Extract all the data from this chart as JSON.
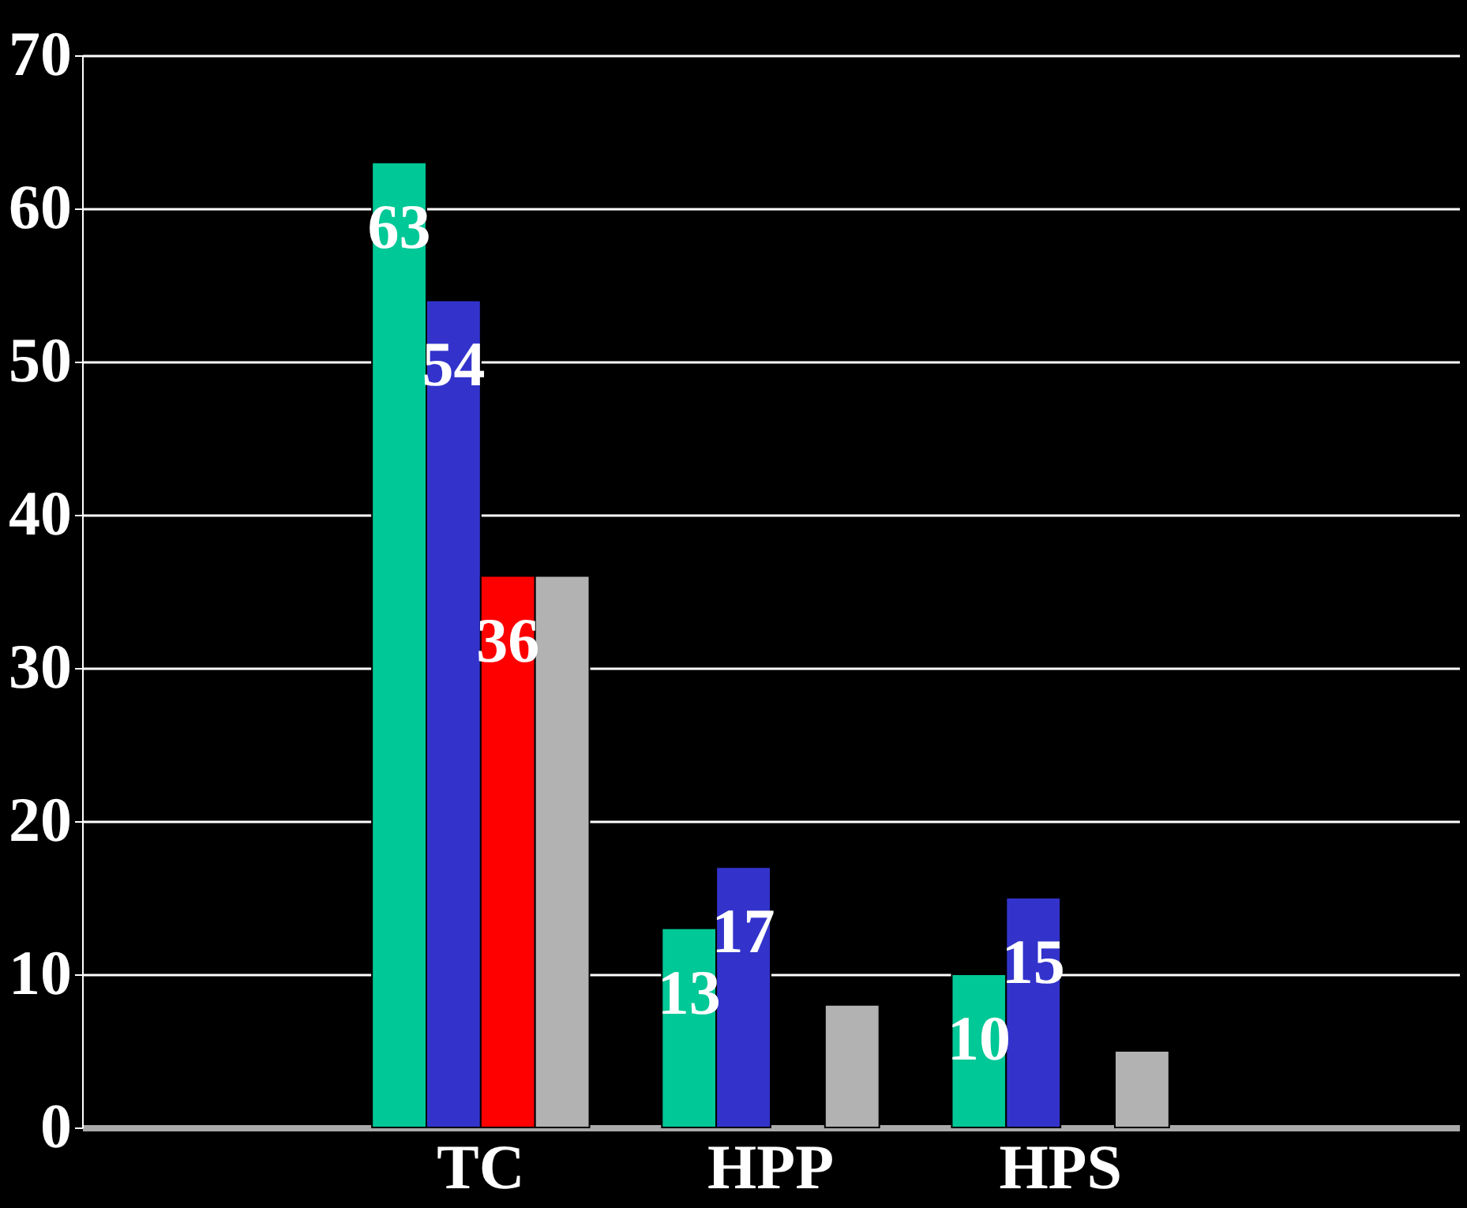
{
  "chart_data": {
    "type": "bar",
    "categories": [
      null,
      "TC",
      "HPP",
      "HPS",
      null
    ],
    "series": [
      {
        "color": "#00c896",
        "values": [
          null,
          63,
          13,
          10,
          null
        ],
        "value_labels": [
          null,
          "63",
          "13",
          "10",
          null
        ]
      },
      {
        "color": "#3333cc",
        "values": [
          null,
          54,
          17,
          15,
          null
        ],
        "value_labels": [
          null,
          "54",
          "17",
          "15",
          null
        ]
      },
      {
        "color": "#ff0000",
        "values": [
          null,
          36,
          null,
          null,
          null
        ],
        "value_labels": [
          null,
          "36",
          null,
          null,
          null
        ]
      },
      {
        "color": "#b2b2b2",
        "values": [
          null,
          36,
          8,
          5,
          null
        ],
        "value_labels": [
          null,
          null,
          null,
          null,
          null
        ]
      }
    ],
    "ylim": [
      0,
      70
    ],
    "yticks": [
      0,
      10,
      20,
      30,
      40,
      50,
      60,
      70
    ],
    "grid": "y",
    "legend": false
  }
}
